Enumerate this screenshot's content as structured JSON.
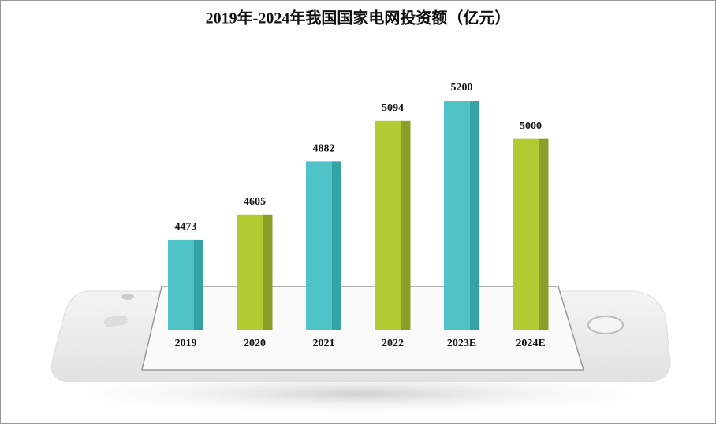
{
  "chart_data": {
    "type": "bar",
    "title": "2019年-2024年我国国家电网投资额（亿元）",
    "categories": [
      "2019",
      "2020",
      "2021",
      "2022",
      "2023E",
      "2024E"
    ],
    "values": [
      4473,
      4605,
      4882,
      5094,
      5200,
      5000
    ],
    "colors": [
      "#4fc3c8",
      "#b0cc32",
      "#4fc3c8",
      "#b0cc32",
      "#4fc3c8",
      "#b0cc32"
    ],
    "side_colors": [
      "#33a3a6",
      "#8a9f2a",
      "#33a3a6",
      "#8a9f2a",
      "#33a3a6",
      "#8a9f2a"
    ],
    "ylim": [
      4000,
      5500
    ]
  }
}
